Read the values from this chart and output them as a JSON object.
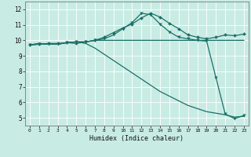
{
  "xlabel": "Humidex (Indice chaleur)",
  "bg_color": "#c8ece4",
  "line_color": "#1a7068",
  "grid_color": "#ffffff",
  "xlim": [
    -0.5,
    23.5
  ],
  "ylim": [
    4.5,
    12.5
  ],
  "xticks": [
    0,
    1,
    2,
    3,
    4,
    5,
    6,
    7,
    8,
    9,
    10,
    11,
    12,
    13,
    14,
    15,
    16,
    17,
    18,
    19,
    20,
    21,
    22,
    23
  ],
  "yticks": [
    5,
    6,
    7,
    8,
    9,
    10,
    11,
    12
  ],
  "series": {
    "line1_nodots": {
      "x": [
        0,
        1,
        2,
        3,
        4,
        5,
        6,
        7,
        8,
        9,
        10,
        11,
        12,
        13,
        14,
        15,
        16,
        17,
        18,
        19,
        20,
        21,
        22,
        23
      ],
      "y": [
        9.7,
        9.8,
        9.75,
        9.75,
        9.85,
        9.9,
        9.9,
        10.0,
        10.0,
        10.0,
        10.0,
        10.0,
        10.0,
        10.0,
        10.0,
        10.0,
        10.0,
        10.0,
        10.0,
        10.0,
        10.0,
        10.0,
        10.0,
        10.0
      ]
    },
    "line2_nodots": {
      "x": [
        0,
        1,
        2,
        3,
        4,
        5,
        6,
        7,
        8,
        9,
        10,
        11,
        12,
        13,
        14,
        15,
        16,
        17,
        18,
        19,
        20,
        21,
        22,
        23
      ],
      "y": [
        9.7,
        9.8,
        9.75,
        9.75,
        9.85,
        9.9,
        9.8,
        9.5,
        9.1,
        8.7,
        8.3,
        7.9,
        7.5,
        7.1,
        6.7,
        6.4,
        6.1,
        5.8,
        5.6,
        5.4,
        5.3,
        5.2,
        5.05,
        5.1
      ]
    },
    "line3_diamonds": {
      "x": [
        0,
        1,
        2,
        3,
        4,
        5,
        6,
        7,
        8,
        9,
        10,
        11,
        12,
        13,
        14,
        15,
        16,
        17,
        18,
        19,
        20,
        21,
        22,
        23
      ],
      "y": [
        9.7,
        9.75,
        9.8,
        9.8,
        9.85,
        9.8,
        9.9,
        10.0,
        10.2,
        10.5,
        10.8,
        11.05,
        11.45,
        11.75,
        11.5,
        11.1,
        10.75,
        10.35,
        10.2,
        10.1,
        10.2,
        10.35,
        10.3,
        10.4
      ]
    },
    "line4_triangles": {
      "x": [
        0,
        1,
        2,
        3,
        4,
        5,
        6,
        7,
        8,
        9,
        10,
        11,
        12,
        13,
        14,
        15,
        16,
        17,
        18,
        19,
        20,
        21,
        22,
        23
      ],
      "y": [
        9.7,
        9.75,
        9.75,
        9.75,
        9.85,
        9.9,
        9.9,
        10.0,
        10.1,
        10.35,
        10.75,
        11.15,
        11.75,
        11.65,
        11.05,
        10.55,
        10.2,
        10.1,
        10.0,
        9.95,
        7.6,
        5.25,
        4.95,
        5.15
      ]
    }
  }
}
